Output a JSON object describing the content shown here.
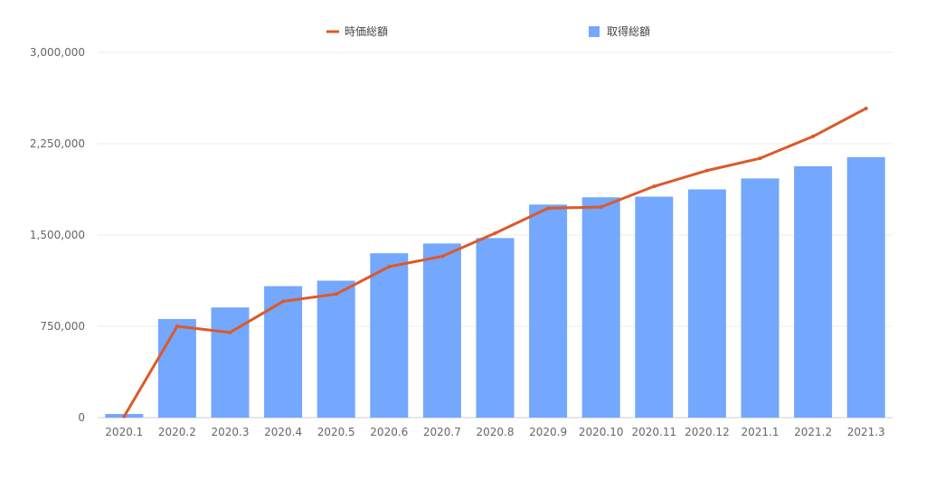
{
  "chart_data": {
    "type": "bar",
    "categories": [
      "2020.1",
      "2020.2",
      "2020.3",
      "2020.4",
      "2020.5",
      "2020.6",
      "2020.7",
      "2020.8",
      "2020.9",
      "2020.10",
      "2020.11",
      "2020.12",
      "2021.1",
      "2021.2",
      "2021.3"
    ],
    "series": [
      {
        "name": "取得総額",
        "type": "bar",
        "color": "#74a7fe",
        "values": [
          30000,
          810000,
          905000,
          1080000,
          1125000,
          1350000,
          1430000,
          1475000,
          1750000,
          1810000,
          1815000,
          1875000,
          1965000,
          2065000,
          2140000
        ]
      },
      {
        "name": "時価総額",
        "type": "line",
        "color": "#db5a2a",
        "values": [
          10000,
          750000,
          700000,
          955000,
          1015000,
          1240000,
          1325000,
          1515000,
          1720000,
          1730000,
          1900000,
          2030000,
          2130000,
          2310000,
          2540000
        ]
      }
    ],
    "yticks": [
      "0",
      "750,000",
      "1,500,000",
      "2,250,000",
      "3,000,000"
    ],
    "ylim": [
      0,
      3000000
    ],
    "grid": true,
    "legend_position": "top-center"
  }
}
